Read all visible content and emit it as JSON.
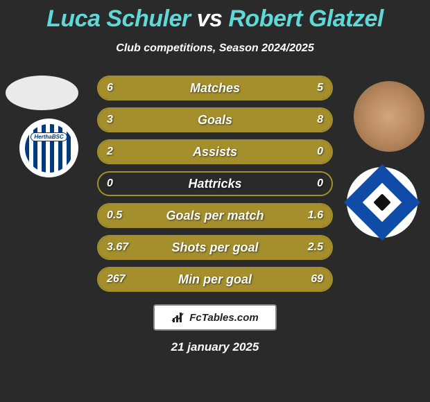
{
  "title": {
    "player1": "Luca Schuler",
    "vs": "vs",
    "player2": "Robert Glatzel"
  },
  "subtitle": "Club competitions, Season 2024/2025",
  "colors": {
    "background": "#2a2a2a",
    "accent_teal": "#5fd8d8",
    "text_white": "#ffffff",
    "bar_fill": "#a48f2c",
    "bar_border": "#a48f2c",
    "hertha_blue": "#003a80",
    "hsv_blue": "#0f4ca8"
  },
  "club_left_label": "HerthaBSC",
  "rows": [
    {
      "label": "Matches",
      "left": "6",
      "right": "5",
      "left_pct": 55,
      "right_pct": 45
    },
    {
      "label": "Goals",
      "left": "3",
      "right": "8",
      "left_pct": 27,
      "right_pct": 73
    },
    {
      "label": "Assists",
      "left": "2",
      "right": "0",
      "left_pct": 100,
      "right_pct": 0
    },
    {
      "label": "Hattricks",
      "left": "0",
      "right": "0",
      "left_pct": 0,
      "right_pct": 0
    },
    {
      "label": "Goals per match",
      "left": "0.5",
      "right": "1.6",
      "left_pct": 24,
      "right_pct": 76
    },
    {
      "label": "Shots per goal",
      "left": "3.67",
      "right": "2.5",
      "left_pct": 60,
      "right_pct": 40
    },
    {
      "label": "Min per goal",
      "left": "267",
      "right": "69",
      "left_pct": 80,
      "right_pct": 20
    }
  ],
  "footer_brand": "FcTables.com",
  "date": "21 january 2025"
}
